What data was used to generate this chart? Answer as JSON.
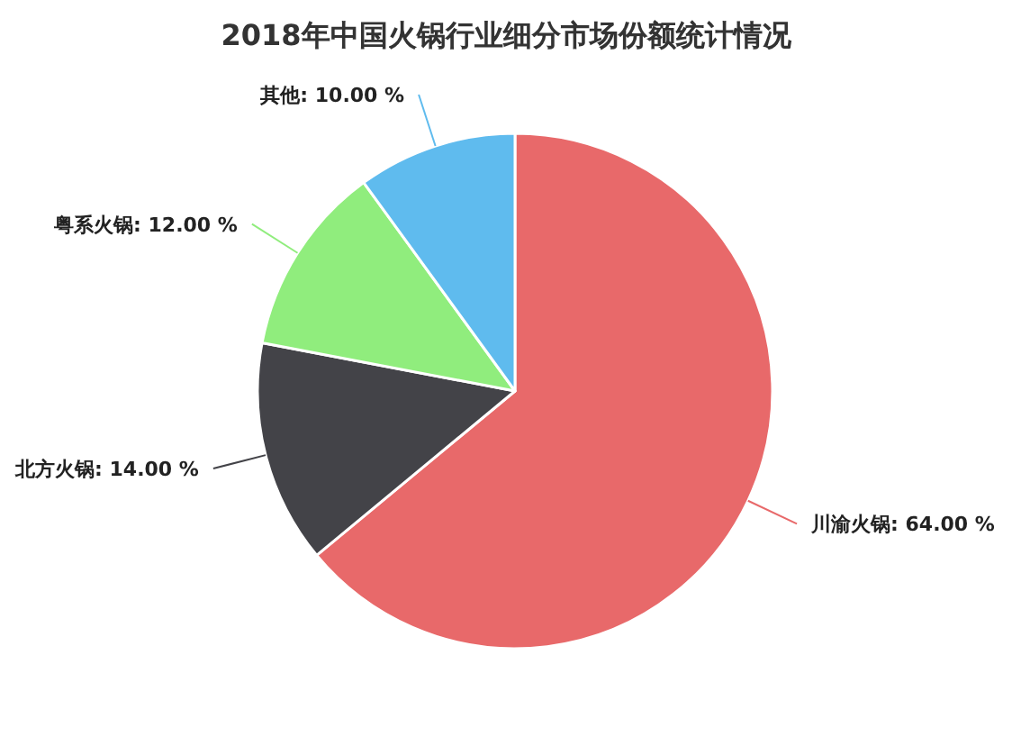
{
  "chart_data": {
    "type": "pie",
    "title": "2018年中国火锅行业细分市场份额统计情况",
    "categories": [
      "川渝火锅",
      "北方火锅",
      "粤系火锅",
      "其他"
    ],
    "values": [
      64,
      14,
      12,
      10
    ],
    "colors": [
      "#e8696a",
      "#434348",
      "#90ed7d",
      "#5fbbee"
    ],
    "value_labels": [
      "64.00 %",
      "14.00 %",
      "12.00 %",
      "10.00 %"
    ]
  }
}
